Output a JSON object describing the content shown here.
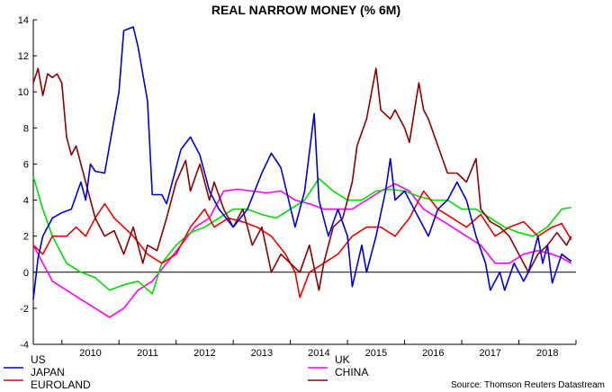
{
  "chart_data": {
    "type": "line",
    "title": "REAL NARROW MONEY (% 6M)",
    "ylim": [
      -4,
      14
    ],
    "yticks": [
      "14",
      "12",
      "10",
      "8",
      "6",
      "4",
      "2",
      "0",
      "-2",
      "-4"
    ],
    "ytick_values": [
      14,
      12,
      10,
      8,
      6,
      4,
      2,
      0,
      -2,
      -4
    ],
    "xlim": [
      "2009-07",
      "2019-01"
    ],
    "xtick_labels": [
      "2010",
      "2011",
      "2012",
      "2013",
      "2014",
      "2015",
      "2016",
      "2017",
      "2018"
    ],
    "grid": false,
    "zero_line": true,
    "legend_position": "bottom",
    "source": "Source: Thomson Reuters Datastream",
    "series": [
      {
        "name": "US",
        "color": "#0000cc",
        "points": [
          [
            "2009-07",
            -1.5
          ],
          [
            "2009-08",
            0.8
          ],
          [
            "2009-09",
            2.0
          ],
          [
            "2009-10",
            2.5
          ],
          [
            "2009-11",
            3.0
          ],
          [
            "2010-01",
            3.3
          ],
          [
            "2010-03",
            3.5
          ],
          [
            "2010-05",
            5.0
          ],
          [
            "2010-06",
            4.0
          ],
          [
            "2010-07",
            6.0
          ],
          [
            "2010-08",
            5.6
          ],
          [
            "2010-10",
            5.5
          ],
          [
            "2010-11",
            7.0
          ],
          [
            "2011-01",
            10.0
          ],
          [
            "2011-02",
            13.4
          ],
          [
            "2011-04",
            13.6
          ],
          [
            "2011-05",
            12.5
          ],
          [
            "2011-07",
            9.5
          ],
          [
            "2011-08",
            4.3
          ],
          [
            "2011-10",
            4.3
          ],
          [
            "2011-11",
            3.8
          ],
          [
            "2012-02",
            6.8
          ],
          [
            "2012-04",
            7.5
          ],
          [
            "2012-06",
            6.5
          ],
          [
            "2012-08",
            4.5
          ],
          [
            "2012-10",
            3.5
          ],
          [
            "2013-01",
            2.5
          ],
          [
            "2013-04",
            3.5
          ],
          [
            "2013-07",
            5.5
          ],
          [
            "2013-09",
            6.6
          ],
          [
            "2013-11",
            5.8
          ],
          [
            "2014-02",
            2.5
          ],
          [
            "2014-04",
            4.5
          ],
          [
            "2014-06",
            8.8
          ],
          [
            "2014-07",
            4.0
          ],
          [
            "2014-09",
            2.0
          ],
          [
            "2014-11",
            3.5
          ],
          [
            "2015-01",
            2.0
          ],
          [
            "2015-02",
            -0.8
          ],
          [
            "2015-04",
            1.5
          ],
          [
            "2015-05",
            0.0
          ],
          [
            "2015-07",
            2.0
          ],
          [
            "2015-09",
            4.5
          ],
          [
            "2015-10",
            6.3
          ],
          [
            "2015-11",
            4.0
          ],
          [
            "2016-01",
            4.5
          ],
          [
            "2016-04",
            3.0
          ],
          [
            "2016-06",
            2.0
          ],
          [
            "2016-08",
            3.5
          ],
          [
            "2016-10",
            4.0
          ],
          [
            "2016-12",
            5.0
          ],
          [
            "2017-02",
            4.0
          ],
          [
            "2017-04",
            2.0
          ],
          [
            "2017-06",
            0.5
          ],
          [
            "2017-07",
            -1.0
          ],
          [
            "2017-09",
            0.0
          ],
          [
            "2017-10",
            -1.0
          ],
          [
            "2017-12",
            0.5
          ],
          [
            "2018-02",
            -0.5
          ],
          [
            "2018-03",
            0.0
          ],
          [
            "2018-05",
            2.0
          ],
          [
            "2018-06",
            0.5
          ],
          [
            "2018-07",
            1.5
          ],
          [
            "2018-08",
            -0.6
          ],
          [
            "2018-10",
            1.0
          ],
          [
            "2018-12",
            0.6
          ]
        ]
      },
      {
        "name": "JAPAN",
        "color": "#ee0000",
        "points": [
          [
            "2009-07",
            1.5
          ],
          [
            "2009-09",
            1.0
          ],
          [
            "2009-11",
            2.0
          ],
          [
            "2010-02",
            2.0
          ],
          [
            "2010-04",
            2.5
          ],
          [
            "2010-06",
            2.0
          ],
          [
            "2010-08",
            3.0
          ],
          [
            "2010-10",
            3.8
          ],
          [
            "2010-12",
            3.0
          ],
          [
            "2011-02",
            2.5
          ],
          [
            "2011-04",
            2.0
          ],
          [
            "2011-07",
            1.0
          ],
          [
            "2011-10",
            0.5
          ],
          [
            "2012-01",
            1.0
          ],
          [
            "2012-04",
            2.5
          ],
          [
            "2012-07",
            3.5
          ],
          [
            "2012-09",
            2.5
          ],
          [
            "2012-12",
            3.0
          ],
          [
            "2013-03",
            2.8
          ],
          [
            "2013-06",
            2.5
          ],
          [
            "2013-09",
            2.0
          ],
          [
            "2013-12",
            1.0
          ],
          [
            "2014-02",
            0.0
          ],
          [
            "2014-03",
            -1.4
          ],
          [
            "2014-05",
            0.0
          ],
          [
            "2014-08",
            0.5
          ],
          [
            "2014-11",
            1.0
          ],
          [
            "2015-02",
            2.0
          ],
          [
            "2015-05",
            2.5
          ],
          [
            "2015-08",
            2.5
          ],
          [
            "2015-11",
            2.0
          ],
          [
            "2016-02",
            3.0
          ],
          [
            "2016-05",
            4.5
          ],
          [
            "2016-08",
            3.5
          ],
          [
            "2016-11",
            3.0
          ],
          [
            "2017-02",
            2.5
          ],
          [
            "2017-05",
            3.2
          ],
          [
            "2017-08",
            2.0
          ],
          [
            "2017-11",
            2.5
          ],
          [
            "2018-02",
            2.8
          ],
          [
            "2018-05",
            2.0
          ],
          [
            "2018-08",
            2.5
          ],
          [
            "2018-10",
            2.7
          ],
          [
            "2018-12",
            1.8
          ]
        ]
      },
      {
        "name": "EUROLAND",
        "color": "#00dd00",
        "points": [
          [
            "2009-07",
            5.3
          ],
          [
            "2009-09",
            3.5
          ],
          [
            "2009-11",
            2.0
          ],
          [
            "2010-02",
            0.5
          ],
          [
            "2010-05",
            0.0
          ],
          [
            "2010-08",
            -0.3
          ],
          [
            "2010-11",
            -1.0
          ],
          [
            "2011-02",
            -0.7
          ],
          [
            "2011-05",
            -0.5
          ],
          [
            "2011-08",
            -1.2
          ],
          [
            "2011-10",
            0.5
          ],
          [
            "2012-01",
            1.5
          ],
          [
            "2012-04",
            2.2
          ],
          [
            "2012-07",
            2.5
          ],
          [
            "2012-10",
            3.0
          ],
          [
            "2013-01",
            3.5
          ],
          [
            "2013-04",
            3.5
          ],
          [
            "2013-07",
            3.2
          ],
          [
            "2013-10",
            3.0
          ],
          [
            "2014-01",
            3.5
          ],
          [
            "2014-04",
            4.0
          ],
          [
            "2014-07",
            5.2
          ],
          [
            "2014-10",
            4.5
          ],
          [
            "2015-01",
            4.0
          ],
          [
            "2015-04",
            4.0
          ],
          [
            "2015-07",
            4.5
          ],
          [
            "2015-10",
            4.6
          ],
          [
            "2016-01",
            4.5
          ],
          [
            "2016-04",
            4.2
          ],
          [
            "2016-07",
            4.0
          ],
          [
            "2016-10",
            4.0
          ],
          [
            "2017-01",
            3.5
          ],
          [
            "2017-04",
            3.5
          ],
          [
            "2017-07",
            3.0
          ],
          [
            "2017-10",
            2.5
          ],
          [
            "2018-01",
            2.2
          ],
          [
            "2018-04",
            2.0
          ],
          [
            "2018-07",
            2.5
          ],
          [
            "2018-10",
            3.5
          ],
          [
            "2018-12",
            3.6
          ]
        ]
      },
      {
        "name": "UK",
        "color": "#ff00ff",
        "points": [
          [
            "2009-07",
            1.5
          ],
          [
            "2009-09",
            0.5
          ],
          [
            "2009-11",
            -0.5
          ],
          [
            "2010-02",
            -1.0
          ],
          [
            "2010-05",
            -1.5
          ],
          [
            "2010-08",
            -2.0
          ],
          [
            "2010-11",
            -2.5
          ],
          [
            "2011-02",
            -2.0
          ],
          [
            "2011-05",
            -1.0
          ],
          [
            "2011-08",
            -0.5
          ],
          [
            "2011-11",
            0.5
          ],
          [
            "2012-02",
            1.5
          ],
          [
            "2012-05",
            2.5
          ],
          [
            "2012-08",
            3.0
          ],
          [
            "2012-11",
            4.5
          ],
          [
            "2013-02",
            4.6
          ],
          [
            "2013-05",
            4.5
          ],
          [
            "2013-08",
            4.4
          ],
          [
            "2013-11",
            4.5
          ],
          [
            "2014-02",
            4.0
          ],
          [
            "2014-05",
            3.8
          ],
          [
            "2014-08",
            3.5
          ],
          [
            "2014-11",
            3.5
          ],
          [
            "2015-02",
            3.5
          ],
          [
            "2015-05",
            4.0
          ],
          [
            "2015-08",
            4.5
          ],
          [
            "2015-11",
            4.9
          ],
          [
            "2016-02",
            4.5
          ],
          [
            "2016-05",
            3.5
          ],
          [
            "2016-08",
            3.0
          ],
          [
            "2016-11",
            2.5
          ],
          [
            "2017-02",
            2.0
          ],
          [
            "2017-05",
            1.5
          ],
          [
            "2017-08",
            0.5
          ],
          [
            "2017-11",
            0.5
          ],
          [
            "2018-02",
            1.0
          ],
          [
            "2018-05",
            1.2
          ],
          [
            "2018-08",
            1.0
          ],
          [
            "2018-10",
            0.8
          ],
          [
            "2018-12",
            0.5
          ]
        ]
      },
      {
        "name": "CHINA",
        "color": "#8b0000",
        "points": [
          [
            "2009-07",
            10.5
          ],
          [
            "2009-08",
            11.3
          ],
          [
            "2009-09",
            9.8
          ],
          [
            "2009-10",
            11.0
          ],
          [
            "2009-11",
            10.8
          ],
          [
            "2009-12",
            11.0
          ],
          [
            "2010-01",
            10.5
          ],
          [
            "2010-02",
            7.5
          ],
          [
            "2010-03",
            6.5
          ],
          [
            "2010-04",
            7.0
          ],
          [
            "2010-06",
            5.0
          ],
          [
            "2010-08",
            3.0
          ],
          [
            "2010-10",
            2.0
          ],
          [
            "2010-12",
            2.3
          ],
          [
            "2011-02",
            1.0
          ],
          [
            "2011-04",
            2.5
          ],
          [
            "2011-06",
            0.5
          ],
          [
            "2011-07",
            1.5
          ],
          [
            "2011-09",
            1.2
          ],
          [
            "2011-11",
            3.0
          ],
          [
            "2012-01",
            5.0
          ],
          [
            "2012-03",
            6.2
          ],
          [
            "2012-04",
            4.5
          ],
          [
            "2012-06",
            6.0
          ],
          [
            "2012-08",
            4.0
          ],
          [
            "2012-09",
            5.0
          ],
          [
            "2012-11",
            3.5
          ],
          [
            "2013-01",
            2.5
          ],
          [
            "2013-03",
            3.5
          ],
          [
            "2013-05",
            1.5
          ],
          [
            "2013-07",
            2.5
          ],
          [
            "2013-09",
            0.0
          ],
          [
            "2013-11",
            1.0
          ],
          [
            "2014-01",
            0.5
          ],
          [
            "2014-03",
            0.0
          ],
          [
            "2014-05",
            1.5
          ],
          [
            "2014-07",
            -1.0
          ],
          [
            "2014-08",
            0.5
          ],
          [
            "2014-10",
            2.5
          ],
          [
            "2014-12",
            3.0
          ],
          [
            "2015-02",
            5.0
          ],
          [
            "2015-03",
            7.0
          ],
          [
            "2015-05",
            8.5
          ],
          [
            "2015-07",
            11.3
          ],
          [
            "2015-08",
            9.0
          ],
          [
            "2015-10",
            8.5
          ],
          [
            "2015-11",
            9.0
          ],
          [
            "2016-01",
            8.0
          ],
          [
            "2016-02",
            7.2
          ],
          [
            "2016-04",
            10.5
          ],
          [
            "2016-05",
            9.0
          ],
          [
            "2016-06",
            8.5
          ],
          [
            "2016-08",
            7.0
          ],
          [
            "2016-10",
            5.5
          ],
          [
            "2016-12",
            5.5
          ],
          [
            "2017-02",
            5.0
          ],
          [
            "2017-04",
            6.3
          ],
          [
            "2017-05",
            3.5
          ],
          [
            "2017-07",
            2.8
          ],
          [
            "2017-09",
            2.5
          ],
          [
            "2017-11",
            2.0
          ],
          [
            "2018-01",
            1.0
          ],
          [
            "2018-03",
            0.0
          ],
          [
            "2018-05",
            1.0
          ],
          [
            "2018-07",
            1.5
          ],
          [
            "2018-09",
            2.2
          ],
          [
            "2018-11",
            1.5
          ],
          [
            "2018-12",
            2.0
          ]
        ]
      }
    ]
  }
}
